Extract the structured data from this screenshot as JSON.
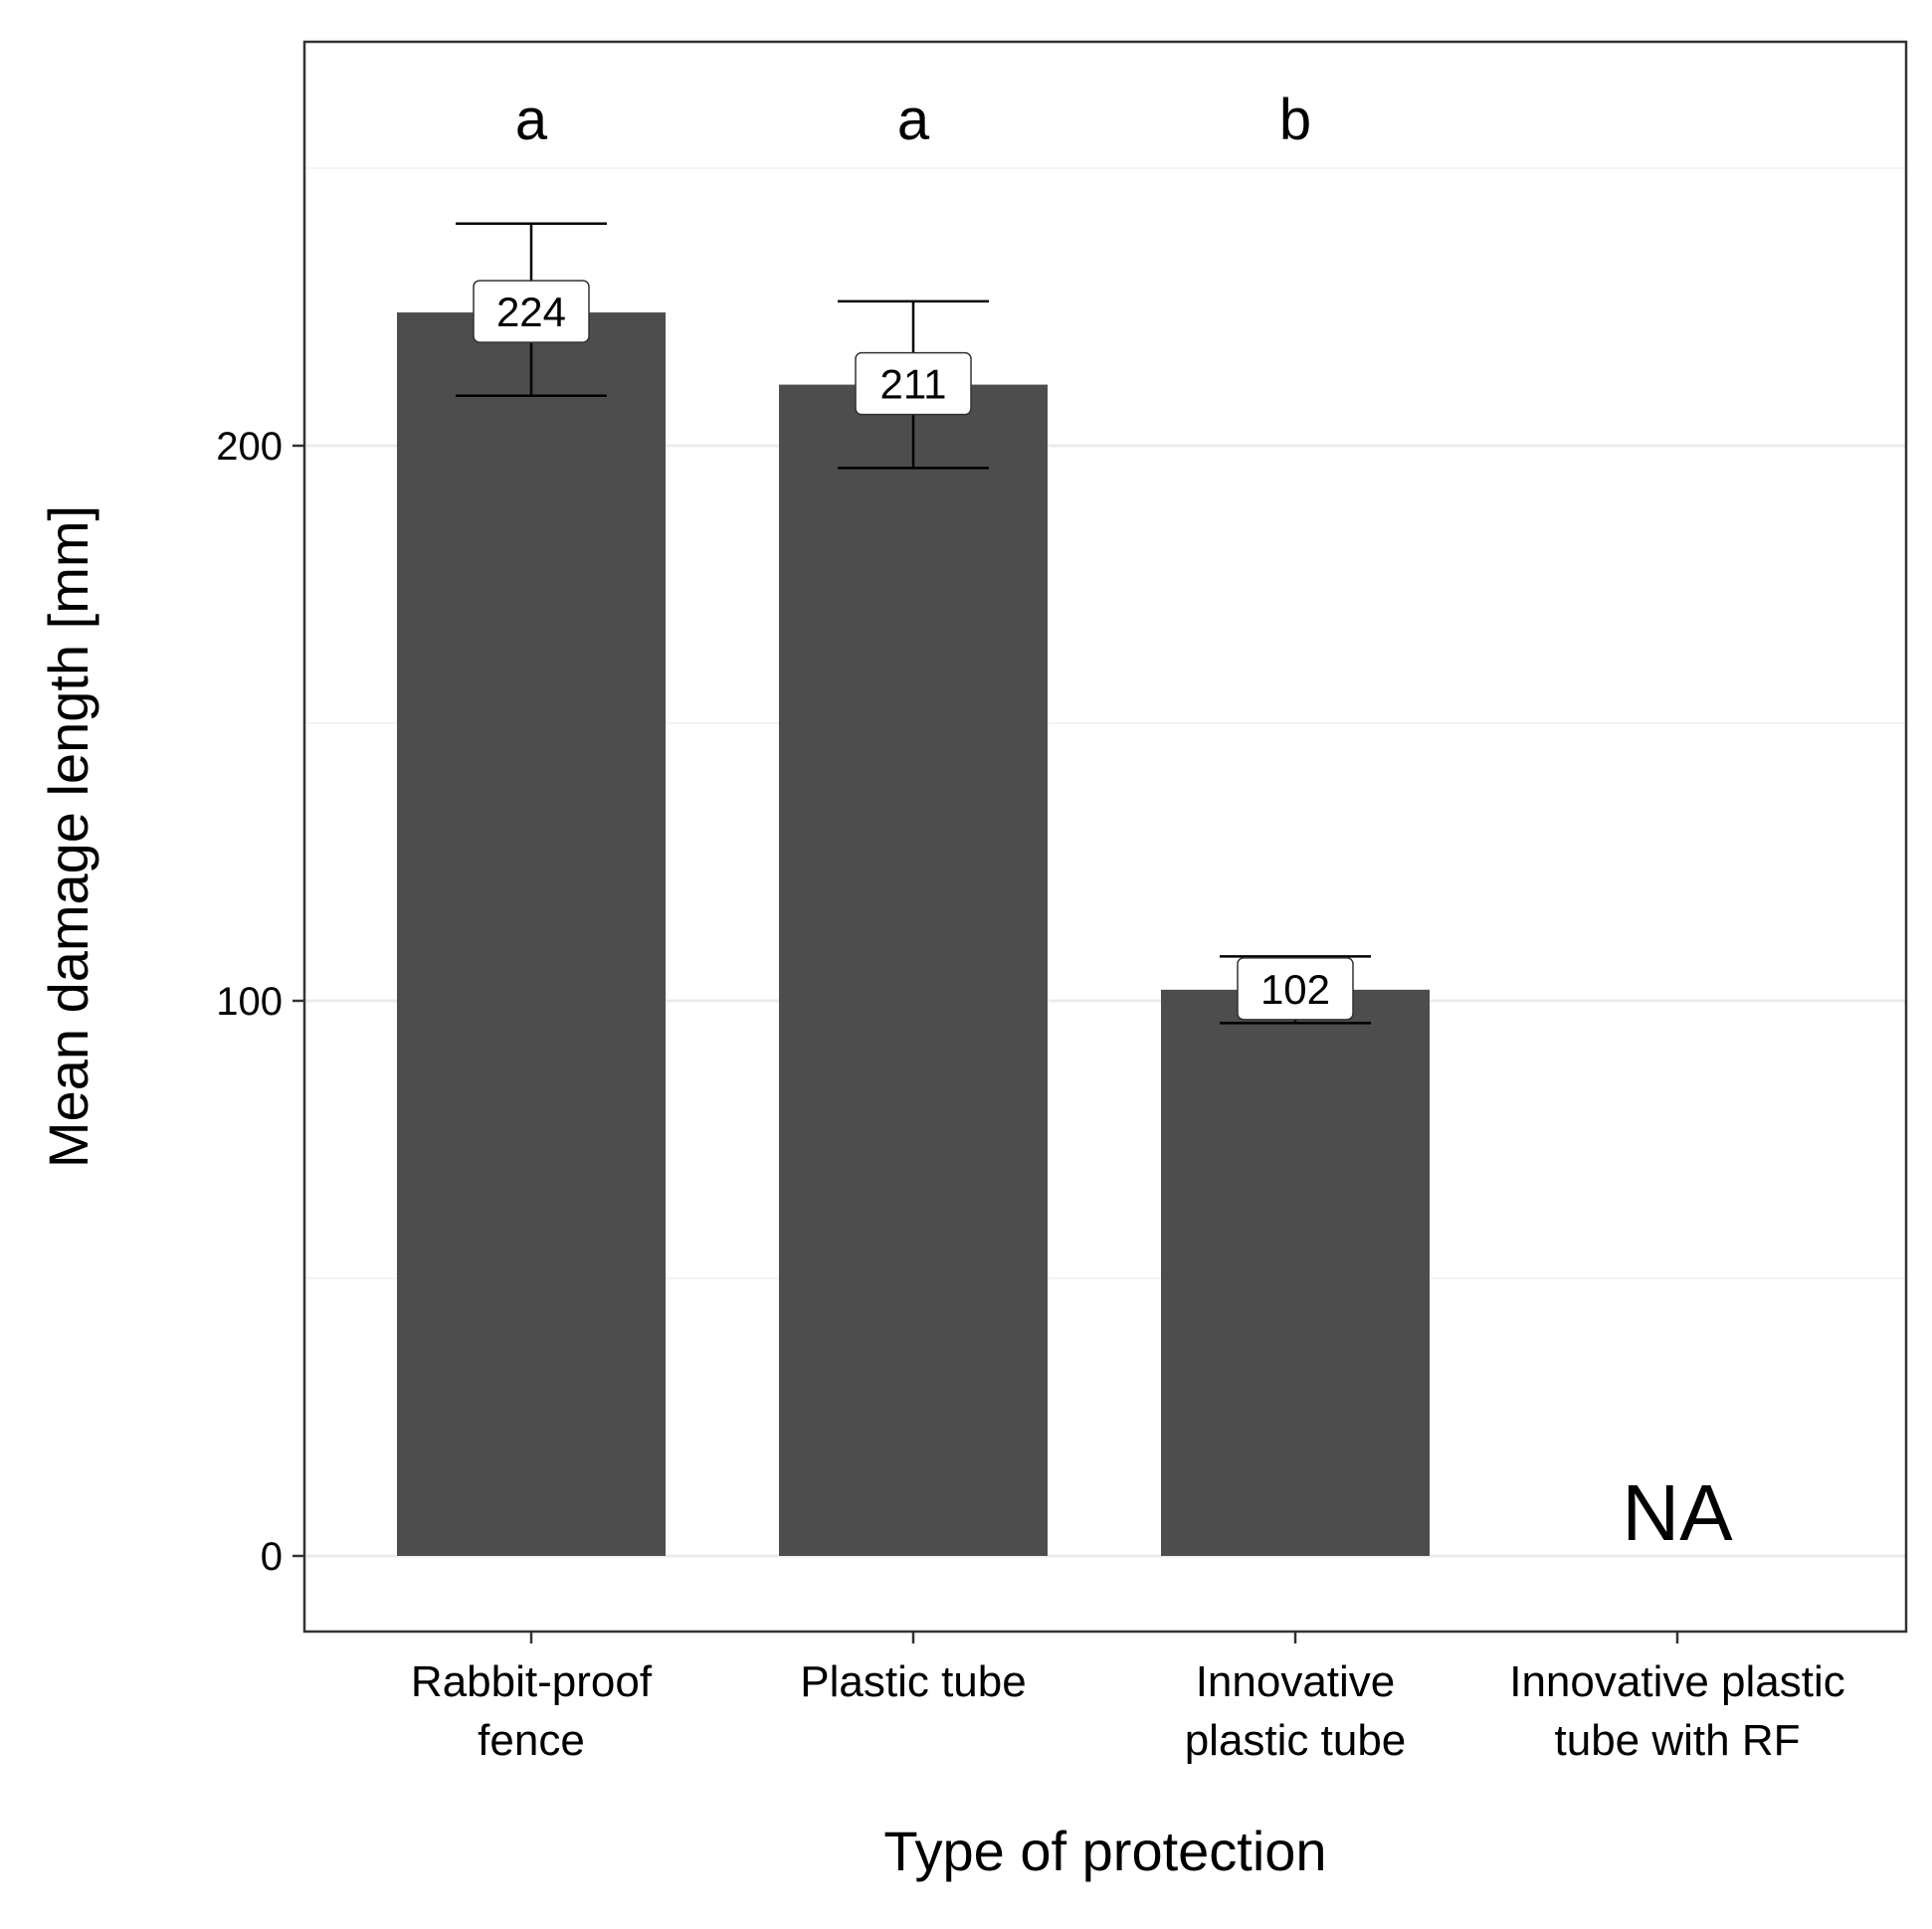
{
  "chart_data": {
    "type": "bar",
    "categories": [
      [
        "Rabbit-proof",
        "fence"
      ],
      [
        "Plastic tube"
      ],
      [
        "Innovative",
        "plastic tube"
      ],
      [
        "Innovative plastic",
        "tube with RF"
      ]
    ],
    "values": [
      224,
      211,
      102,
      null
    ],
    "error_bars": [
      {
        "low": 209,
        "high": 240
      },
      {
        "low": 196,
        "high": 226
      },
      {
        "low": 96,
        "high": 108
      },
      null
    ],
    "data_labels": [
      "224",
      "211",
      "102",
      ""
    ],
    "significance_letters": [
      "a",
      "a",
      "b",
      ""
    ],
    "missing_label": "NA",
    "xlabel": "Type of protection",
    "ylabel": "Mean damage length [mm]",
    "ylim": [
      -13,
      273
    ],
    "yticks": [
      0,
      100,
      200
    ],
    "grid": true,
    "colors": {
      "bar": "#4d4d4d",
      "panel_border": "#333333",
      "grid_major": "#ebebeb",
      "grid_minor": "#f4f4f4",
      "error_bar": "#000000"
    }
  }
}
